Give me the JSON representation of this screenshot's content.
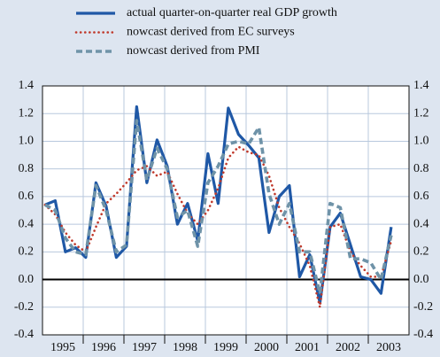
{
  "chart_data": {
    "type": "line",
    "categories": [
      "1995",
      null,
      null,
      null,
      "1996",
      null,
      null,
      null,
      "1997",
      null,
      null,
      null,
      "1998",
      null,
      null,
      null,
      "1999",
      null,
      null,
      null,
      "2000",
      null,
      null,
      null,
      "2001",
      null,
      null,
      null,
      "2002",
      null,
      null,
      null,
      "2003",
      null,
      null
    ],
    "series": [
      {
        "name": "actual quarter-on-quarter real GDP growth",
        "color": "#1f58a6",
        "style": "solid",
        "values": [
          0.54,
          0.57,
          0.2,
          0.23,
          0.16,
          0.7,
          0.53,
          0.16,
          0.24,
          1.25,
          0.7,
          1.01,
          0.82,
          0.4,
          0.55,
          0.28,
          0.91,
          0.55,
          1.24,
          1.05,
          0.97,
          0.88,
          0.34,
          0.6,
          0.68,
          0.02,
          0.18,
          -0.17,
          0.38,
          0.48,
          0.25,
          0.02,
          0.0,
          -0.1,
          0.38
        ]
      },
      {
        "name": "nowcast derived from EC surveys",
        "color": "#c0392b",
        "style": "dotted",
        "values": [
          0.54,
          0.47,
          0.34,
          0.25,
          0.2,
          0.38,
          0.55,
          0.62,
          0.7,
          0.79,
          0.82,
          0.75,
          0.78,
          0.62,
          0.48,
          0.4,
          0.5,
          0.66,
          0.88,
          0.96,
          0.92,
          0.9,
          0.75,
          0.52,
          0.38,
          0.26,
          0.1,
          -0.2,
          0.38,
          0.4,
          0.2,
          0.1,
          0.02,
          0.02,
          0.28
        ]
      },
      {
        "name": "nowcast derived from PMI",
        "color": "#6f93a8",
        "style": "dashed",
        "values": [
          0.54,
          0.5,
          0.3,
          0.2,
          0.18,
          0.68,
          0.5,
          0.2,
          0.25,
          1.15,
          0.72,
          0.95,
          0.8,
          0.45,
          0.5,
          0.24,
          0.7,
          0.82,
          0.98,
          1.0,
          0.98,
          1.1,
          0.62,
          0.4,
          0.55,
          0.2,
          0.2,
          -0.1,
          0.55,
          0.52,
          0.15,
          0.15,
          0.12,
          0.0,
          0.32
        ]
      }
    ],
    "ylim": [
      -0.4,
      1.4
    ],
    "yticks": [
      -0.4,
      -0.2,
      {
        "value": 0,
        "label": "0.0"
      },
      0.2,
      0.4,
      0.6,
      0.8,
      {
        "value": 1,
        "label": "1.0"
      },
      1.2,
      1.4
    ],
    "y2lim": [
      -0.4,
      1.4
    ],
    "y2ticks": [
      -0.4,
      -0.2,
      {
        "value": 0,
        "label": "0.0"
      },
      0.2,
      0.4,
      0.6,
      0.8,
      {
        "value": 1,
        "label": "1.0"
      },
      1.2,
      1.4
    ],
    "grid": true,
    "zero_line": true
  }
}
